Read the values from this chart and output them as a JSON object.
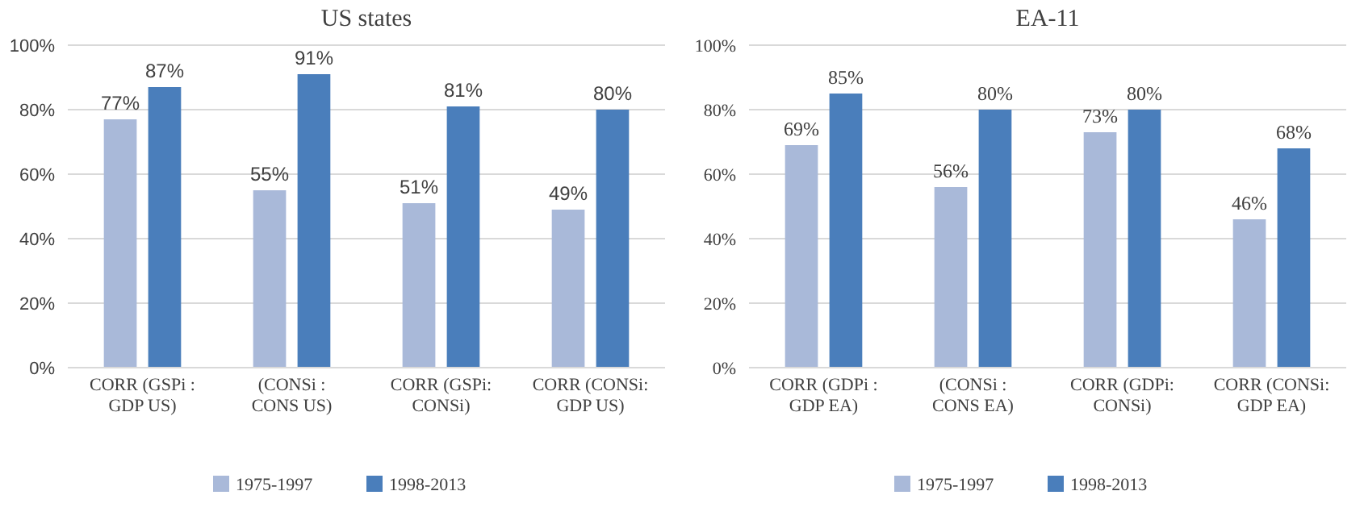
{
  "chart_data": [
    {
      "type": "bar",
      "title": "US states",
      "categories": [
        "CORR (GSPi : GDP US)",
        "(CONSi : CONS US)",
        "CORR (GSPi: CONSi)",
        "CORR (CONSi: GDP US)"
      ],
      "series": [
        {
          "name": "1975-1997",
          "color": "#a9b9d9",
          "values": [
            77,
            55,
            51,
            49
          ],
          "value_labels": [
            "77%",
            "55%",
            "51%",
            "49%"
          ]
        },
        {
          "name": "1998-2013",
          "color": "#4a7ebb",
          "values": [
            87,
            91,
            81,
            80
          ],
          "value_labels": [
            "87%",
            "91%",
            "81%",
            "80%"
          ]
        }
      ],
      "ylim": [
        0,
        100
      ],
      "yticks": [
        {
          "value": 0,
          "label": "0%"
        },
        {
          "value": 20,
          "label": "20%"
        },
        {
          "value": 40,
          "label": "40%"
        },
        {
          "value": 60,
          "label": "60%"
        },
        {
          "value": 80,
          "label": "80%"
        },
        {
          "value": 100,
          "label": "100%"
        }
      ],
      "grid": "y",
      "legend": "bottom"
    },
    {
      "type": "bar",
      "title": "EA-11",
      "categories": [
        "CORR (GDPi : GDP EA)",
        "(CONSi : CONS EA)",
        "CORR (GDPi: CONSi)",
        "CORR (CONSi: GDP EA)"
      ],
      "series": [
        {
          "name": "1975-1997",
          "color": "#a9b9d9",
          "values": [
            69,
            56,
            73,
            46
          ],
          "value_labels": [
            "69%",
            "56%",
            "73%",
            "46%"
          ]
        },
        {
          "name": "1998-2013",
          "color": "#4a7ebb",
          "values": [
            85,
            80,
            80,
            68
          ],
          "value_labels": [
            "85%",
            "80%",
            "80%",
            "68%"
          ]
        }
      ],
      "ylim": [
        0,
        100
      ],
      "yticks": [
        {
          "value": 0,
          "label": "0%"
        },
        {
          "value": 20,
          "label": "20%"
        },
        {
          "value": 40,
          "label": "40%"
        },
        {
          "value": 60,
          "label": "60%"
        },
        {
          "value": 80,
          "label": "80%"
        },
        {
          "value": 100,
          "label": "100%"
        }
      ],
      "grid": "y",
      "legend": "bottom"
    }
  ]
}
